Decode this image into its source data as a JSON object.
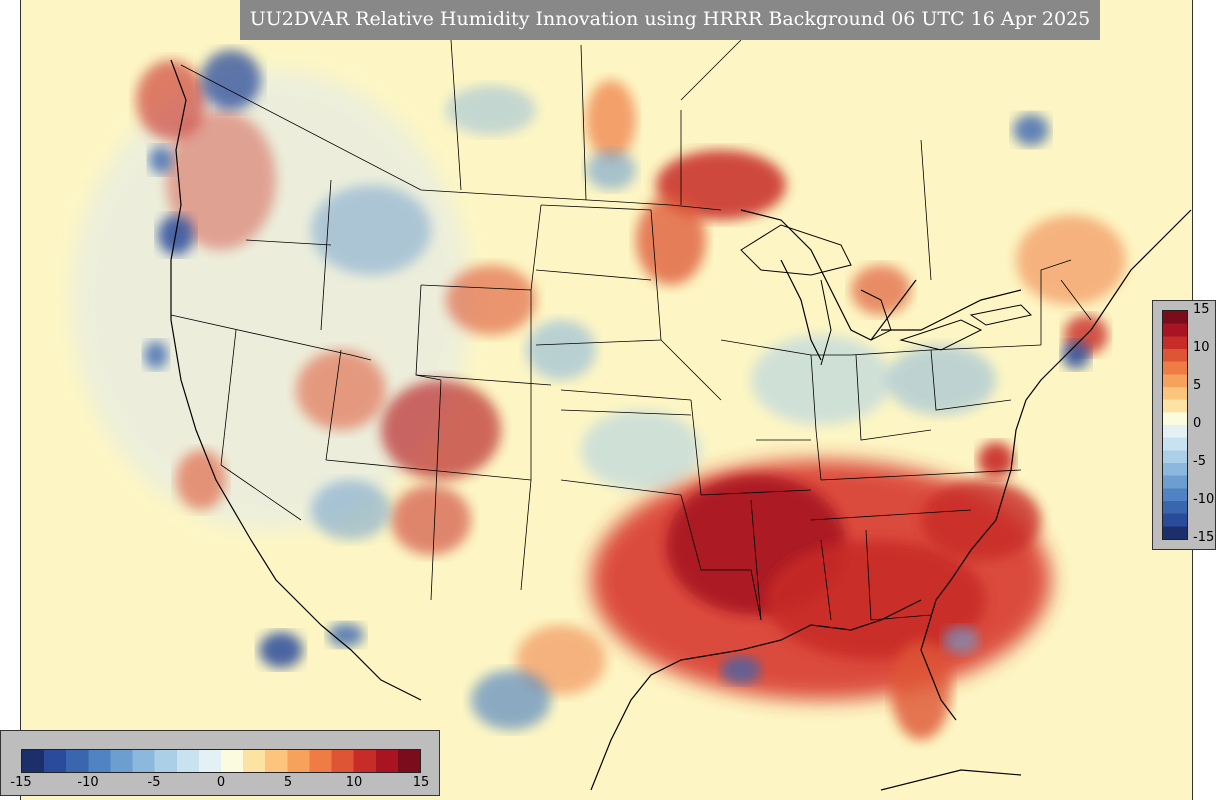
{
  "title": "UU2DVAR Relative Humidity Innovation using HRRR Background 06 UTC 16 Apr 2025",
  "colorbar": {
    "min": -15,
    "max": 15,
    "ticks_vertical": [
      "15",
      "10",
      "5",
      "0",
      "-5",
      "-10",
      "-15"
    ],
    "ticks_horizontal": [
      "-15",
      "-10",
      "-5",
      "0",
      "5",
      "10",
      "15"
    ],
    "colors": [
      "#1d2f6b",
      "#2a4b9b",
      "#3a66b0",
      "#4f83c1",
      "#6d9ed0",
      "#8cb8dd",
      "#abcfe7",
      "#c9e2ef",
      "#e4f1f4",
      "#fbfbe0",
      "#fde3a3",
      "#fcc47c",
      "#f8a15d",
      "#ef7c45",
      "#de5535",
      "#c82c28",
      "#a81421",
      "#7a0c1c"
    ]
  },
  "map": {
    "features": [
      "land-background",
      "state-borders",
      "coastlines",
      "innovation-blobs"
    ]
  }
}
